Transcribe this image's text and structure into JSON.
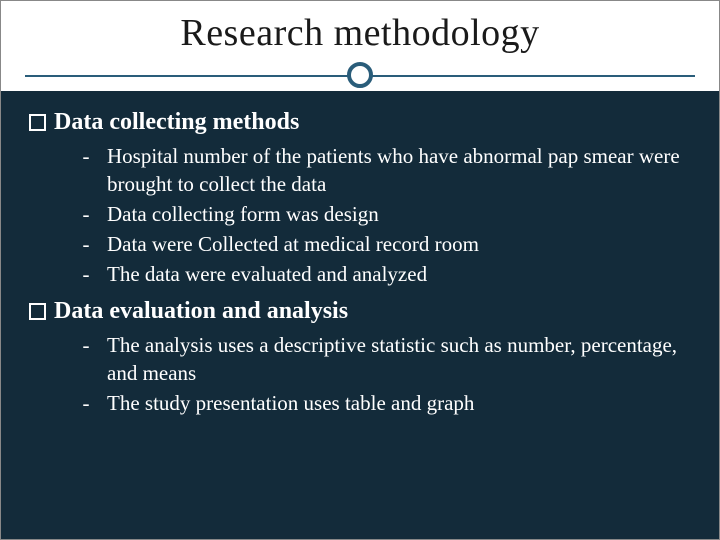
{
  "colors": {
    "title_bg": "#ffffff",
    "title_text": "#1a1a1a",
    "divider": "#2a5d7a",
    "content_bg": "#132b3a",
    "content_text": "#ffffff"
  },
  "title": "Research methodology",
  "sections": [
    {
      "heading": "Data collecting methods",
      "items": [
        "Hospital number of the patients who have abnormal pap smear were brought to collect the data",
        "Data collecting form was design",
        "Data were Collected at medical record room",
        "The data were evaluated and analyzed"
      ]
    },
    {
      "heading": "Data evaluation and analysis",
      "items": [
        "The analysis uses a descriptive statistic such as number, percentage, and means",
        "The study presentation uses table and graph"
      ]
    }
  ]
}
